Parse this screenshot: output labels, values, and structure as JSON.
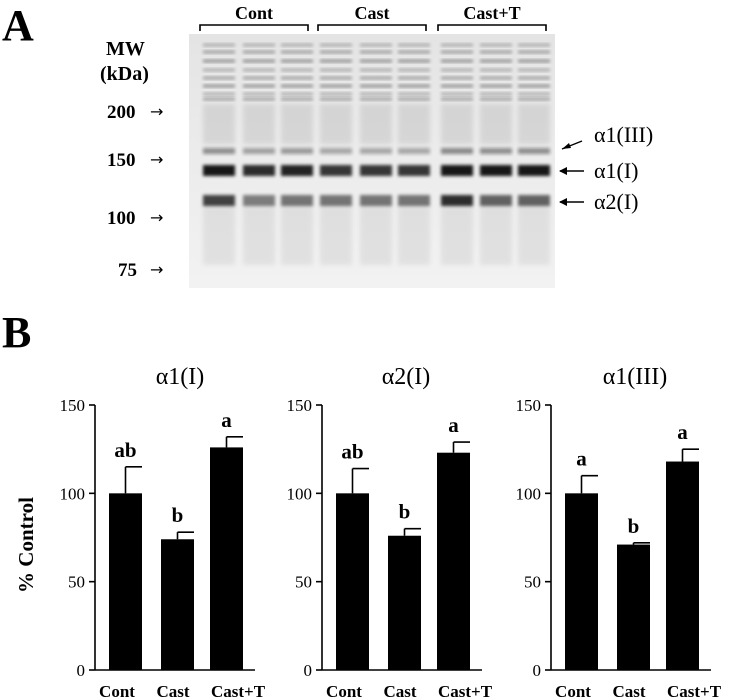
{
  "panel_a": {
    "letter": "A",
    "mw_header_line1": "MW",
    "mw_header_line2": "(kDa)",
    "mw_markers": [
      "200",
      "150",
      "100",
      "75"
    ],
    "groups": [
      "Cont",
      "Cast",
      "Cast+T"
    ],
    "band_labels": [
      "α1(III)",
      "α1(I)",
      "α2(I)"
    ],
    "arrow_glyph": "→"
  },
  "panel_b": {
    "letter": "B",
    "y_axis_label": "% Control"
  },
  "chart_data": [
    {
      "type": "bar",
      "title": "α1(I)",
      "categories": [
        "Cont",
        "Cast",
        "Cast+T"
      ],
      "values": [
        100,
        74,
        126
      ],
      "errors": [
        15,
        4,
        6
      ],
      "significance": [
        "ab",
        "b",
        "a"
      ],
      "ylim": [
        0,
        150
      ],
      "yticks": [
        0,
        50,
        100,
        150
      ],
      "ylabel": "% Control",
      "bar_color": "#000000"
    },
    {
      "type": "bar",
      "title": "α2(I)",
      "categories": [
        "Cont",
        "Cast",
        "Cast+T"
      ],
      "values": [
        100,
        76,
        123
      ],
      "errors": [
        14,
        4,
        6
      ],
      "significance": [
        "ab",
        "b",
        "a"
      ],
      "ylim": [
        0,
        150
      ],
      "yticks": [
        0,
        50,
        100,
        150
      ],
      "ylabel": "",
      "bar_color": "#000000"
    },
    {
      "type": "bar",
      "title": "α1(III)",
      "categories": [
        "Cont",
        "Cast",
        "Cast+T"
      ],
      "values": [
        100,
        71,
        118
      ],
      "errors": [
        10,
        1,
        7
      ],
      "significance": [
        "a",
        "b",
        "a"
      ],
      "ylim": [
        0,
        150
      ],
      "yticks": [
        0,
        50,
        100,
        150
      ],
      "ylabel": "",
      "bar_color": "#000000"
    }
  ]
}
